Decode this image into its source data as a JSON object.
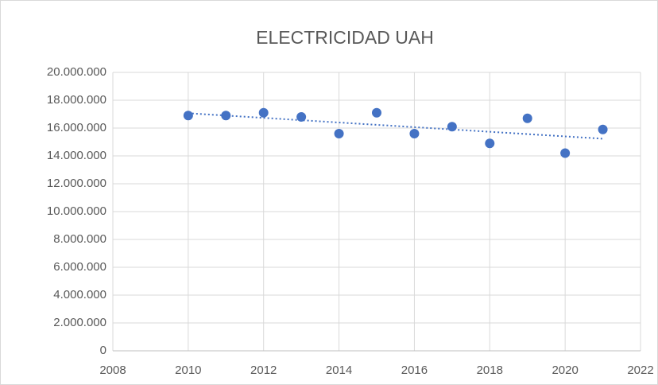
{
  "chart_data": {
    "type": "scatter",
    "title": "ELECTRICIDAD UAH",
    "series": [
      {
        "color": "#4472c4",
        "x": [
          2010,
          2011,
          2012,
          2013,
          2014,
          2015,
          2016,
          2017,
          2018,
          2019,
          2020,
          2021
        ],
        "values": [
          16900000,
          16900000,
          17100000,
          16800000,
          15600000,
          17100000,
          15600000,
          16100000,
          14900000,
          16700000,
          14200000,
          15900000
        ]
      }
    ],
    "trendline": "linear",
    "xlim": [
      2008,
      2022
    ],
    "xticks": [
      2008,
      2010,
      2012,
      2014,
      2016,
      2018,
      2020,
      2022
    ],
    "ylim": [
      0,
      20000000
    ],
    "yticks": [
      0,
      {
        "value": 2000000,
        "label": "2.000.000"
      },
      {
        "value": 4000000,
        "label": "4.000.000"
      },
      {
        "value": 6000000,
        "label": "6.000.000"
      },
      {
        "value": 8000000,
        "label": "8.000.000"
      },
      {
        "value": 10000000,
        "label": "10.000.000"
      },
      {
        "value": 12000000,
        "label": "12.000.000"
      },
      {
        "value": 14000000,
        "label": "14.000.000"
      },
      {
        "value": 16000000,
        "label": "16.000.000"
      },
      {
        "value": 18000000,
        "label": "18.000.000"
      },
      {
        "value": 20000000,
        "label": "20.000.000"
      }
    ],
    "grid": true
  }
}
